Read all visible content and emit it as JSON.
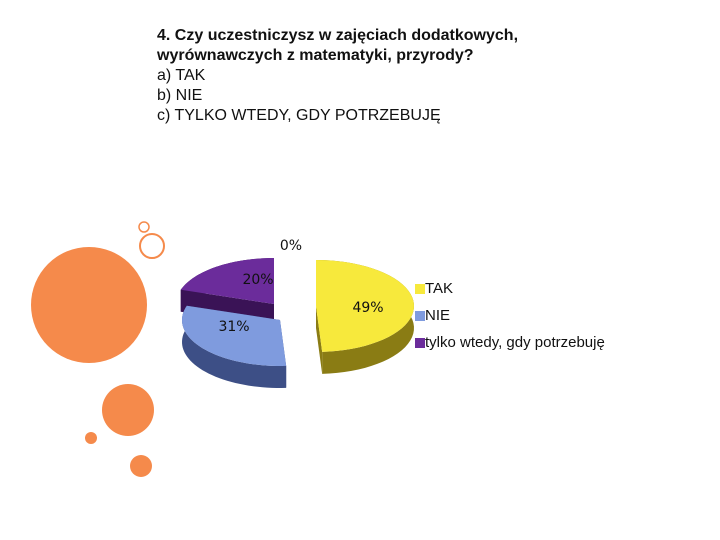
{
  "slide": {
    "question": {
      "title_line1": "4. Czy  uczestniczysz w zajęciach dodatkowych,",
      "title_line2": "wyrównawczych z matematyki, przyrody?",
      "options": [
        "a)  TAK",
        "b)  NIE",
        "c)  TYLKO WTEDY, GDY POTRZEBUJĘ"
      ]
    },
    "decor_color": "#f58a4b"
  },
  "chart_data": {
    "type": "pie",
    "title": "",
    "categories": [
      "TAK",
      "NIE",
      "tylko wtedy, gdy potrzebuję"
    ],
    "values": [
      49,
      31,
      20
    ],
    "value_labels": [
      "49%",
      "31%",
      "20%"
    ],
    "extra_label": "0%",
    "colors": [
      "#f7e93c",
      "#7f9bde",
      "#6b2c9b"
    ],
    "side_colors": [
      "#8a7c14",
      "#3d4f86",
      "#3a1356"
    ],
    "legend_position": "right",
    "style": "3d-exploded"
  }
}
